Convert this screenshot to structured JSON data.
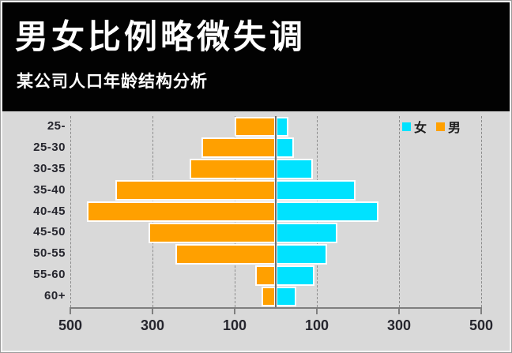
{
  "header": {
    "title": "男女比例略微失调",
    "subtitle": "某公司人口年龄结构分析"
  },
  "legend": {
    "female": "女",
    "male": "男"
  },
  "colors": {
    "female": "#00E2FF",
    "male": "#FFA000",
    "plot_background": "#D9D9D9",
    "header_background": "#000000",
    "label_text": "#26262E",
    "axis": "#7F7F7F"
  },
  "chart_data": {
    "type": "bar",
    "variant": "population-pyramid",
    "title": "男女比例略微失调",
    "subtitle": "某公司人口年龄结构分析",
    "categories": [
      "25-",
      "25-30",
      "30-35",
      "35-40",
      "40-45",
      "45-50",
      "50-55",
      "55-60",
      "60+"
    ],
    "series": [
      {
        "name": "男",
        "side": "left",
        "color": "#FFA000",
        "values": [
          100,
          180,
          210,
          390,
          460,
          310,
          245,
          50,
          35
        ]
      },
      {
        "name": "女",
        "side": "right",
        "color": "#00E2FF",
        "values": [
          30,
          45,
          90,
          195,
          250,
          150,
          125,
          95,
          50
        ]
      }
    ],
    "x_axis": {
      "tick_labels": [
        "500",
        "300",
        "100",
        "100",
        "300",
        "500"
      ],
      "tick_values": [
        -500,
        -300,
        -100,
        100,
        300,
        500
      ],
      "xlim": [
        -520,
        520
      ]
    },
    "grid": "vertical-dashed",
    "legend_position": "top-right",
    "legend_entries": [
      "女",
      "男"
    ]
  }
}
